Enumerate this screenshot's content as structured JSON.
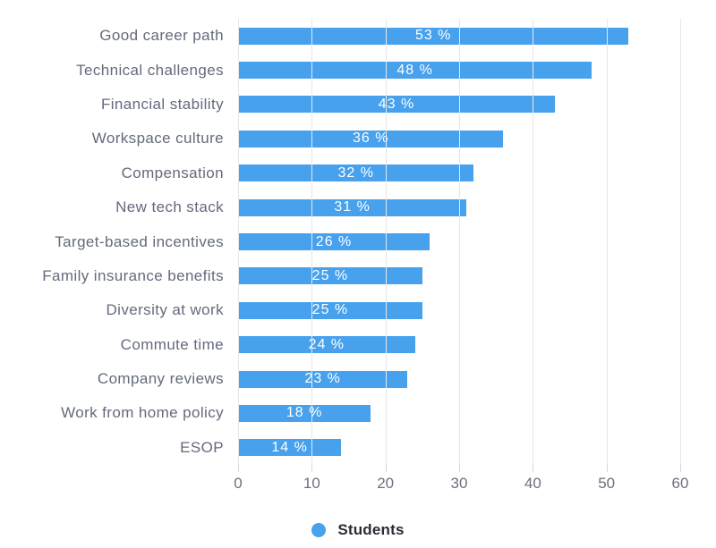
{
  "chart_data": {
    "type": "bar",
    "orientation": "horizontal",
    "title": "",
    "xlabel": "",
    "ylabel": "",
    "categories": [
      "Good career path",
      "Technical challenges",
      "Financial stability",
      "Workspace culture",
      "Compensation",
      "New tech stack",
      "Target-based incentives",
      "Family insurance benefits",
      "Diversity at work",
      "Commute time",
      "Company reviews",
      "Work from home policy",
      "ESOP"
    ],
    "series": [
      {
        "name": "Students",
        "values": [
          53,
          48,
          43,
          36,
          32,
          31,
          26,
          25,
          25,
          24,
          23,
          18,
          14
        ]
      }
    ],
    "value_label_format": "{v} %",
    "xlim": [
      0,
      60
    ],
    "x_ticks": [
      0,
      10,
      20,
      30,
      40,
      50,
      60
    ],
    "grid": "vertical-only",
    "legend": {
      "label": "Students",
      "position": "bottom"
    },
    "colors": {
      "bar": "#47a1ed",
      "grid": "#e7e7ea",
      "tick": "#d2d5db",
      "category_label": "#646a7c",
      "axis_label": "#6b7080",
      "value_label": "#ffffff",
      "legend_text": "#2b2b34",
      "background": "#ffffff"
    }
  }
}
